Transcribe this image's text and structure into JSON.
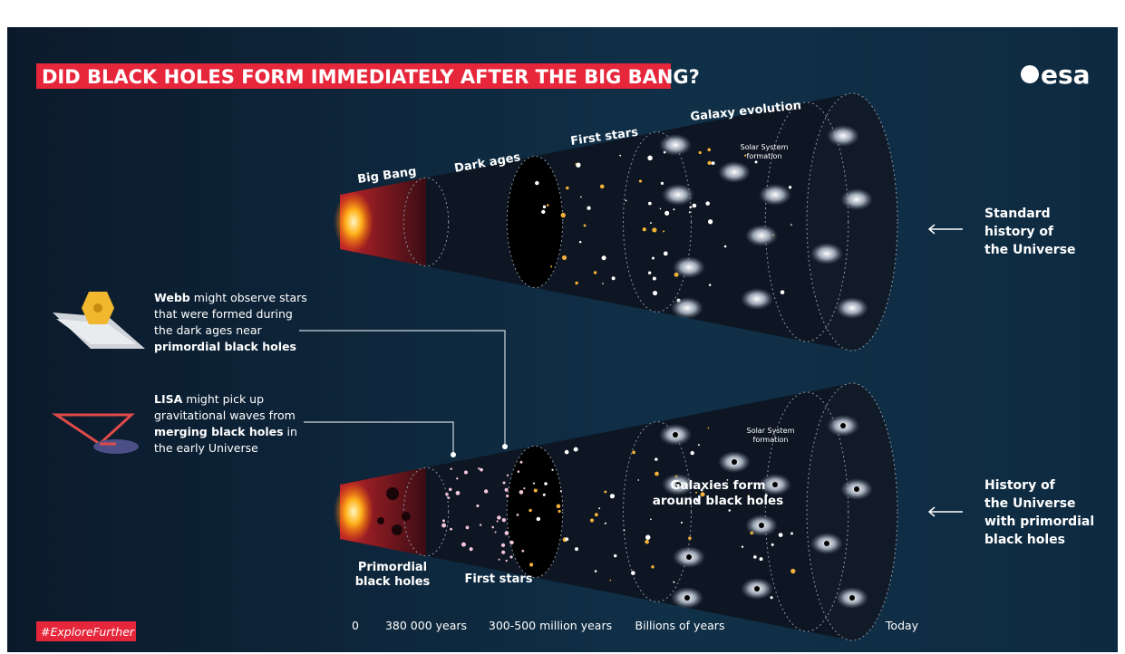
{
  "header": {
    "title": "DID BLACK HOLES FORM IMMEDIATELY AFTER THE BIG BANG?",
    "logo": "esa"
  },
  "top_cone": {
    "labels": [
      "Big Bang",
      "Dark ages",
      "First stars",
      "Galaxy evolution"
    ],
    "solar_system": [
      "Solar System",
      "formation"
    ],
    "caption": [
      "Standard",
      "history of",
      "the Universe"
    ]
  },
  "bottom_cone": {
    "primordial": [
      "Primordial",
      "black holes"
    ],
    "first_stars": "First stars",
    "galaxies": [
      "Galaxies form",
      "around black holes"
    ],
    "solar_system": [
      "Solar System",
      "formation"
    ],
    "caption": [
      "History of",
      "the Universe",
      "with primordial",
      "black holes"
    ]
  },
  "notes": {
    "webb": {
      "lead": "Webb",
      "text": "might observe stars that were formed during the dark ages near",
      "emphasis": "primordial black holes"
    },
    "lisa": {
      "lead": "LISA",
      "text": "might pick up gravitational waves from",
      "emphasis": "merging black holes",
      "tail": "in the early Universe"
    }
  },
  "timeline": [
    "0",
    "380 000 years",
    "300-500 million years",
    "Billions of years",
    "Today"
  ],
  "hashtag": "#ExploreFurther"
}
